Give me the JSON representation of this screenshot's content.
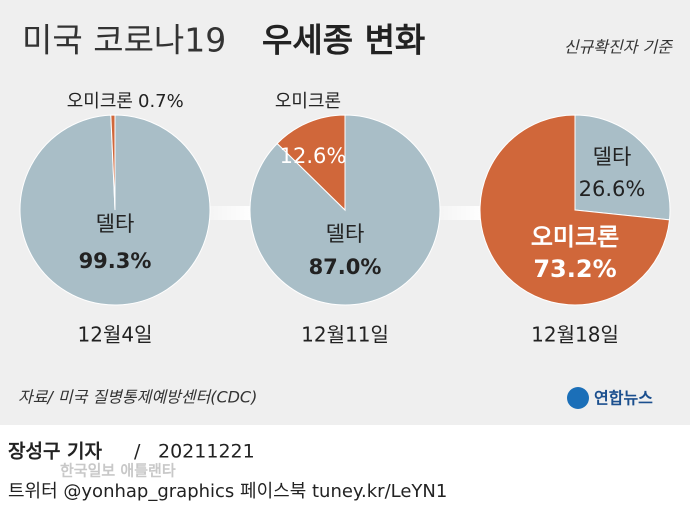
{
  "header": {
    "title_light": "미국 코로나19",
    "title_bold": "우세종 변화",
    "subtitle": "신규확진자 기준"
  },
  "source": "자료/ 미국 질병통제예방센터(CDC)",
  "logo": "연합뉴스",
  "byline": {
    "author": "장성구 기자",
    "separator": "/",
    "date": "20211221"
  },
  "watermark": "한국일보 애틀랜타",
  "footer": "트위터 @yonhap_graphics  페이스북 tuney.kr/LeYN1",
  "chart_data": [
    {
      "type": "pie",
      "title": "12월4일",
      "categories": [
        "델타",
        "오미크론"
      ],
      "values": [
        99.3,
        0.7
      ],
      "value_labels": [
        "99.3%",
        "0.7%"
      ],
      "colors": [
        "#a9bec7",
        "#d0673a"
      ]
    },
    {
      "type": "pie",
      "title": "12월11일",
      "categories": [
        "델타",
        "오미크론"
      ],
      "values": [
        87.0,
        12.6
      ],
      "value_labels": [
        "87.0%",
        "12.6%"
      ],
      "colors": [
        "#a9bec7",
        "#d0673a"
      ]
    },
    {
      "type": "pie",
      "title": "12월18일",
      "categories": [
        "델타",
        "오미크론"
      ],
      "values": [
        26.6,
        73.2
      ],
      "value_labels": [
        "26.6%",
        "73.2%"
      ],
      "colors": [
        "#a9bec7",
        "#d0673a"
      ]
    }
  ]
}
